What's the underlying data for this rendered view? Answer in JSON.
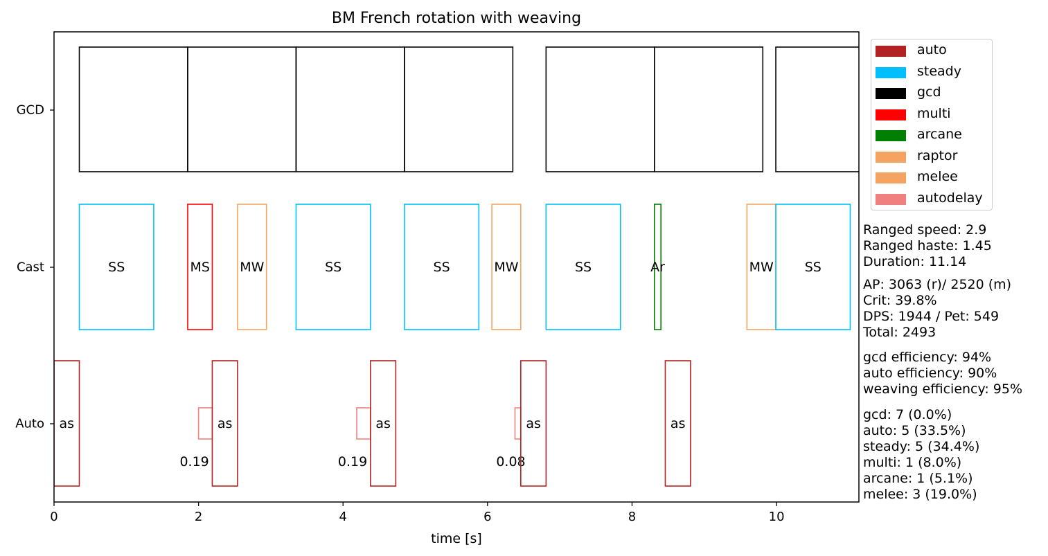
{
  "chart_data": {
    "type": "timeline",
    "title": "BM French rotation with weaving",
    "xlabel": "time [s]",
    "xlim": [
      0,
      11.14
    ],
    "xticks": [
      0,
      2,
      4,
      6,
      8,
      10
    ],
    "rows": [
      "GCD",
      "Cast",
      "Auto"
    ],
    "gcd": [
      {
        "start": 0.35,
        "end": 1.85
      },
      {
        "start": 1.85,
        "end": 3.35
      },
      {
        "start": 3.35,
        "end": 4.85
      },
      {
        "start": 4.85,
        "end": 6.35
      },
      {
        "start": 6.81,
        "end": 8.31
      },
      {
        "start": 8.31,
        "end": 9.81
      },
      {
        "start": 9.99,
        "end": 11.49
      }
    ],
    "cast": [
      {
        "start": 0.35,
        "end": 1.38,
        "label": "SS",
        "kind": "steady"
      },
      {
        "start": 1.85,
        "end": 2.19,
        "label": "MS",
        "kind": "multi"
      },
      {
        "start": 2.54,
        "end": 2.94,
        "label": "MW",
        "kind": "melee"
      },
      {
        "start": 3.35,
        "end": 4.38,
        "label": "SS",
        "kind": "steady"
      },
      {
        "start": 4.85,
        "end": 5.88,
        "label": "SS",
        "kind": "steady"
      },
      {
        "start": 6.06,
        "end": 6.46,
        "label": "MW",
        "kind": "melee"
      },
      {
        "start": 6.81,
        "end": 7.84,
        "label": "SS",
        "kind": "steady"
      },
      {
        "start": 8.31,
        "end": 8.4,
        "label": "Ar",
        "kind": "arcane"
      },
      {
        "start": 9.59,
        "end": 9.99,
        "label": "MW",
        "kind": "melee"
      },
      {
        "start": 9.99,
        "end": 11.02,
        "label": "SS",
        "kind": "steady"
      }
    ],
    "auto": [
      {
        "start": 0.0,
        "end": 0.35,
        "label": "as"
      },
      {
        "start": 2.19,
        "end": 2.54,
        "label": "as"
      },
      {
        "start": 4.38,
        "end": 4.73,
        "label": "as"
      },
      {
        "start": 6.46,
        "end": 6.81,
        "label": "as"
      },
      {
        "start": 8.46,
        "end": 8.81,
        "label": "as"
      }
    ],
    "autodelay": [
      {
        "start": 2.0,
        "end": 2.19,
        "label": "0.19"
      },
      {
        "start": 4.19,
        "end": 4.38,
        "label": "0.19"
      },
      {
        "start": 6.38,
        "end": 6.46,
        "label": "0.08"
      }
    ],
    "legend": [
      {
        "name": "auto",
        "color": "#b22222"
      },
      {
        "name": "steady",
        "color": "#00bfff"
      },
      {
        "name": "gcd",
        "color": "#000000"
      },
      {
        "name": "multi",
        "color": "#ff0000"
      },
      {
        "name": "arcane",
        "color": "#008000"
      },
      {
        "name": "raptor",
        "color": "#f4a460"
      },
      {
        "name": "melee",
        "color": "#f4a460"
      },
      {
        "name": "autodelay",
        "color": "#f08080"
      }
    ],
    "colors": {
      "gcd": "#000000",
      "steady": "#00bfff",
      "multi": "#ff0000",
      "arcane": "#008000",
      "melee": "#f4a460",
      "auto": "#b22222",
      "autodelay": "#f08080"
    }
  },
  "stats": {
    "block1": [
      "Ranged speed: 2.9",
      "Ranged haste: 1.45",
      "Duration: 11.14"
    ],
    "block2": [
      "AP: 3063 (r)/ 2520 (m)",
      "Crit: 39.8%",
      "DPS: 1944 / Pet: 549",
      "Total: 2493"
    ],
    "block3": [
      "gcd efficiency: 94%",
      "auto efficiency: 90%",
      "weaving efficiency: 95%"
    ],
    "block4": [
      "gcd: 7 (0.0%)",
      "auto: 5 (33.5%)",
      "steady: 5 (34.4%)",
      "multi: 1 (8.0%)",
      "arcane: 1 (5.1%)",
      "melee: 3 (19.0%)"
    ]
  }
}
